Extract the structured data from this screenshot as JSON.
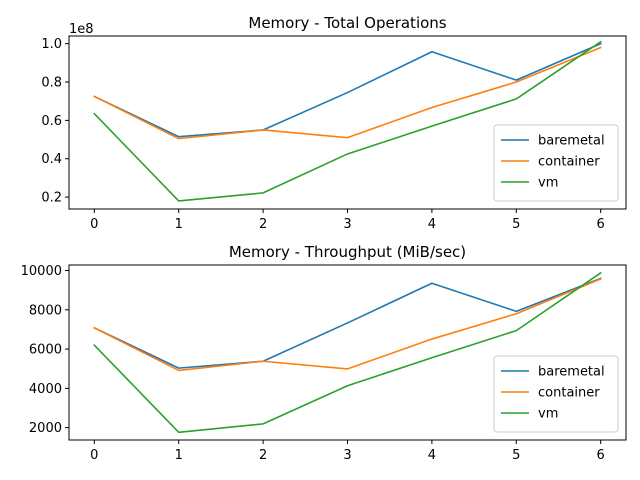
{
  "chart_data": [
    {
      "type": "line",
      "title": "Memory - Total Operations",
      "xlabel": "",
      "ylabel": "",
      "offset_label": "1e8",
      "x": [
        0,
        1,
        2,
        3,
        4,
        5,
        6
      ],
      "xticks": [
        "0",
        "1",
        "2",
        "3",
        "4",
        "5",
        "6"
      ],
      "yticks": [
        "0.2",
        "0.4",
        "0.6",
        "0.8",
        "1.0"
      ],
      "ytick_values": [
        0.2,
        0.4,
        0.6,
        0.8,
        1.0
      ],
      "xlim": [
        -0.3,
        6.3
      ],
      "ylim": [
        0.138,
        1.04
      ],
      "grid": false,
      "legend": "lower-right",
      "series": [
        {
          "name": "baremetal",
          "color": "#1f77b4",
          "values": [
            0.725,
            0.515,
            0.55,
            0.745,
            0.958,
            0.81,
            1.0
          ]
        },
        {
          "name": "container",
          "color": "#ff7f0e",
          "values": [
            0.725,
            0.505,
            0.55,
            0.51,
            0.667,
            0.8,
            0.98
          ]
        },
        {
          "name": "vm",
          "color": "#2ca02c",
          "values": [
            0.635,
            0.18,
            0.222,
            0.425,
            0.57,
            0.712,
            1.01
          ]
        }
      ]
    },
    {
      "type": "line",
      "title": "Memory - Throughput (MiB/sec)",
      "xlabel": "",
      "ylabel": "",
      "x": [
        0,
        1,
        2,
        3,
        4,
        5,
        6
      ],
      "xticks": [
        "0",
        "1",
        "2",
        "3",
        "4",
        "5",
        "6"
      ],
      "yticks": [
        "2000",
        "4000",
        "6000",
        "8000",
        "10000"
      ],
      "ytick_values": [
        2000,
        4000,
        6000,
        8000,
        10000
      ],
      "xlim": [
        -0.3,
        6.3
      ],
      "ylim": [
        1370,
        10280
      ],
      "grid": false,
      "legend": "lower-right",
      "series": [
        {
          "name": "baremetal",
          "color": "#1f77b4",
          "values": [
            7080,
            5030,
            5380,
            7330,
            9350,
            7920,
            9600
          ]
        },
        {
          "name": "container",
          "color": "#ff7f0e",
          "values": [
            7080,
            4910,
            5380,
            4990,
            6510,
            7800,
            9570
          ]
        },
        {
          "name": "vm",
          "color": "#2ca02c",
          "values": [
            6200,
            1760,
            2190,
            4130,
            5560,
            6940,
            9880
          ]
        }
      ]
    }
  ]
}
